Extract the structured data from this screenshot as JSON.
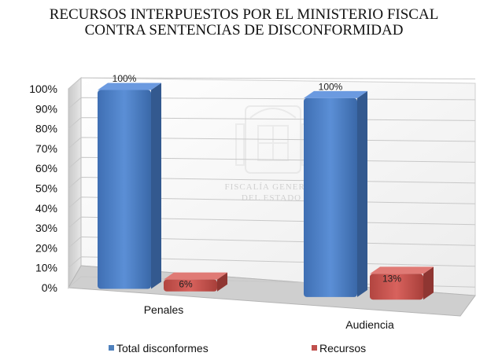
{
  "chart_data": {
    "type": "bar",
    "title": "RECURSOS INTERPUESTOS POR EL MINISTERIO FISCAL CONTRA SENTENCIAS DE DISCONFORMIDAD",
    "title_lines": [
      "RECURSOS INTERPUESTOS POR EL MINISTERIO FISCAL",
      "CONTRA SENTENCIAS DE DISCONFORMIDAD"
    ],
    "categories": [
      "Penales",
      "Audiencia"
    ],
    "series": [
      {
        "name": "Total disconformes",
        "values": [
          100,
          100
        ],
        "color": "#4f81bd"
      },
      {
        "name": "Recursos",
        "values": [
          6,
          13
        ],
        "color": "#c0504d"
      }
    ],
    "data_labels": [
      [
        "100%",
        "100%"
      ],
      [
        "6%",
        "13%"
      ]
    ],
    "y_ticks": [
      "0%",
      "10%",
      "20%",
      "30%",
      "40%",
      "50%",
      "60%",
      "70%",
      "80%",
      "90%",
      "100%"
    ],
    "ylim": [
      0,
      100
    ],
    "grid": true,
    "style": "3d",
    "legend_position": "bottom",
    "xlabel": "",
    "ylabel": ""
  },
  "watermark": {
    "line1": "FISCALÍA GENERAL",
    "line2": "DEL ESTADO"
  }
}
